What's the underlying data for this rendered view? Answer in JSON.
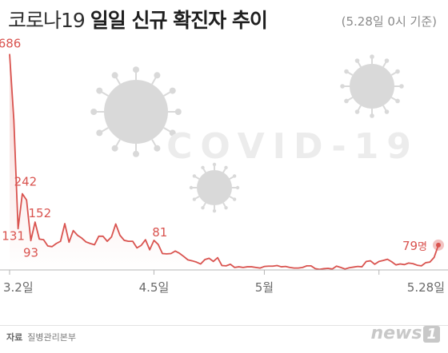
{
  "title": {
    "main": "코로나19 ",
    "bold": "일일 신규 확진자 추이"
  },
  "subtitle": "(5.28일 0시 기준)",
  "watermark": "COVID-19",
  "source": {
    "label": "자료",
    "text": "질병관리본부"
  },
  "logo": {
    "text": "news",
    "badge": "1"
  },
  "colors": {
    "line": "#d9534f",
    "area_top": "#f6d4d2",
    "area_bottom": "#ffffff",
    "virus": "#d9d9d9",
    "axis": "#b5b5b5"
  },
  "chart_data": {
    "type": "area",
    "xlabel": "",
    "ylabel": "",
    "x_ticks": [
      {
        "label": "3.2일",
        "date": "2020-03-02"
      },
      {
        "label": "4.5일",
        "date": "2020-04-05"
      },
      {
        "label": "5월",
        "date": "2020-05-01"
      },
      {
        "label": "5.28일",
        "date": "2020-05-28"
      }
    ],
    "start_date": "2020-03-02",
    "ylim": [
      0,
      700
    ],
    "values": [
      686,
      476,
      131,
      242,
      222,
      93,
      152,
      98,
      96,
      76,
      74,
      84,
      91,
      147,
      88,
      125,
      110,
      101,
      89,
      84,
      80,
      107,
      107,
      91,
      105,
      146,
      110,
      94,
      91,
      91,
      70,
      78,
      96,
      64,
      94,
      81,
      52,
      51,
      52,
      60,
      53,
      43,
      32,
      29,
      25,
      19,
      33,
      37,
      27,
      39,
      14,
      13,
      18,
      8,
      10,
      8,
      10,
      10,
      8,
      6,
      11,
      12,
      12,
      14,
      10,
      11,
      8,
      6,
      6,
      8,
      13,
      13,
      4,
      2,
      4,
      5,
      3,
      12,
      8,
      3,
      7,
      9,
      11,
      10,
      27,
      29,
      18,
      27,
      30,
      34,
      26,
      16,
      19,
      17,
      22,
      20,
      15,
      13,
      23,
      25,
      40,
      79
    ],
    "annotations": [
      {
        "index": 0,
        "label": "686",
        "dx": 0,
        "dy": -8,
        "anchor": "middle"
      },
      {
        "index": 3,
        "label": "242",
        "dx": 4,
        "dy": -10,
        "anchor": "middle"
      },
      {
        "index": 2,
        "label": "131",
        "dx": -6,
        "dy": 14,
        "anchor": "middle"
      },
      {
        "index": 6,
        "label": "152",
        "dx": 6,
        "dy": -6,
        "anchor": "middle"
      },
      {
        "index": 5,
        "label": "93",
        "dx": 0,
        "dy": 20,
        "anchor": "middle"
      },
      {
        "index": 35,
        "label": "81",
        "dx": 2,
        "dy": -10,
        "anchor": "middle"
      },
      {
        "index": 101,
        "label": "79",
        "suffix": "명",
        "dx": -14,
        "dy": 6,
        "anchor": "end"
      }
    ]
  }
}
